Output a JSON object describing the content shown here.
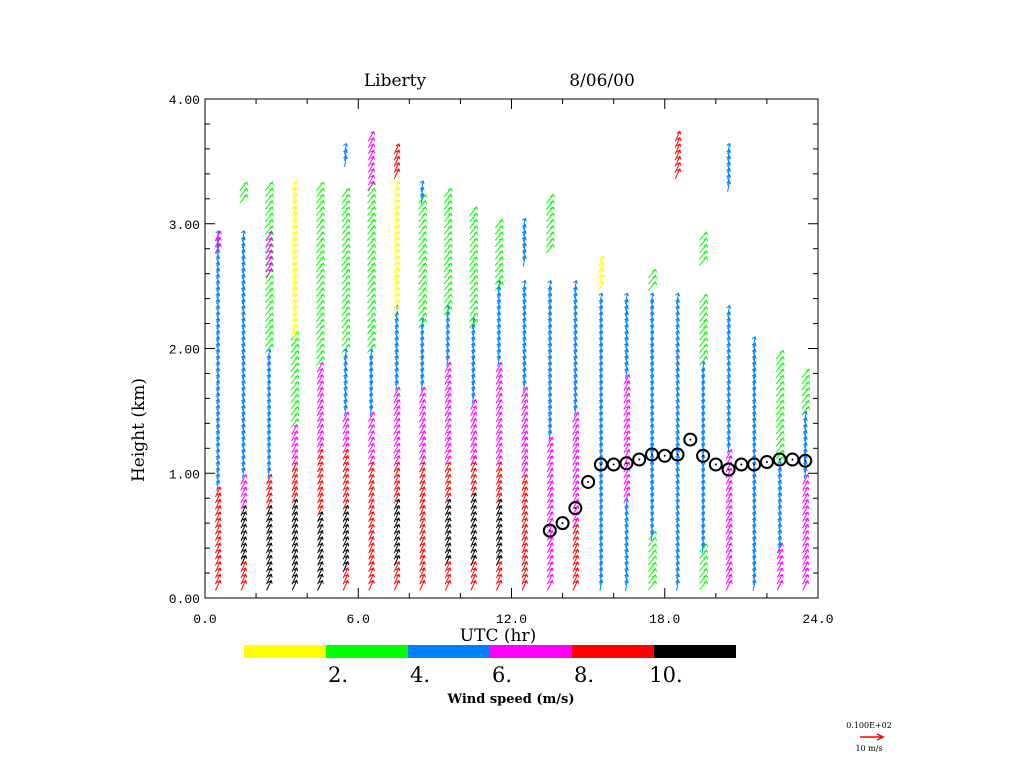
{
  "chart_data": {
    "type": "wind-profile-time-height",
    "title_station": "Liberty",
    "title_date": "8/06/00",
    "xlabel": "UTC (hr)",
    "ylabel": "Height (km)",
    "xlim": [
      0,
      24
    ],
    "ylim": [
      0,
      4
    ],
    "x_ticks": [
      "0.0",
      "6.0",
      "12.0",
      "18.0",
      "24.0"
    ],
    "y_ticks": [
      "0.00",
      "1.00",
      "2.00",
      "3.00",
      "4.00"
    ],
    "colorbar": {
      "label": "Wind speed (m/s)",
      "bins": [
        [
          0,
          2
        ],
        [
          2,
          4
        ],
        [
          4,
          6
        ],
        [
          6,
          8
        ],
        [
          8,
          10
        ],
        [
          10,
          12
        ]
      ],
      "colors": [
        "#ffff00",
        "#00ff00",
        "#0080ff",
        "#ff00ff",
        "#ff0000",
        "#000000"
      ],
      "tick_labels": [
        "2.",
        "4.",
        "6.",
        "8.",
        "10."
      ]
    },
    "reference_vector": {
      "scale_label": "0.100E+02",
      "label": "10 m/s",
      "color": "#ff0000"
    },
    "profiles": [
      {
        "t": 0.5,
        "bands": [
          [
            0.1,
            0.9,
            4
          ],
          [
            0.9,
            2.9,
            2
          ],
          [
            2.8,
            2.9,
            3
          ]
        ]
      },
      {
        "t": 1.5,
        "bands": [
          [
            0.1,
            0.3,
            4
          ],
          [
            0.3,
            0.75,
            5
          ],
          [
            0.75,
            1.0,
            3
          ],
          [
            1.0,
            2.9,
            2
          ],
          [
            3.2,
            3.3,
            1
          ]
        ]
      },
      {
        "t": 2.5,
        "bands": [
          [
            0.1,
            0.75,
            5
          ],
          [
            0.75,
            1.0,
            4
          ],
          [
            1.0,
            2.0,
            2
          ],
          [
            2.0,
            3.3,
            1
          ],
          [
            2.6,
            2.9,
            3
          ]
        ]
      },
      {
        "t": 3.5,
        "bands": [
          [
            0.1,
            0.8,
            5
          ],
          [
            0.8,
            1.1,
            4
          ],
          [
            1.1,
            1.4,
            3
          ],
          [
            1.4,
            2.1,
            1
          ],
          [
            2.1,
            3.3,
            0
          ]
        ]
      },
      {
        "t": 4.5,
        "bands": [
          [
            0.1,
            0.7,
            5
          ],
          [
            0.7,
            1.2,
            4
          ],
          [
            1.2,
            1.9,
            3
          ],
          [
            1.9,
            3.3,
            1
          ]
        ]
      },
      {
        "t": 5.5,
        "bands": [
          [
            0.1,
            0.25,
            4
          ],
          [
            0.25,
            0.75,
            5
          ],
          [
            0.75,
            1.2,
            4
          ],
          [
            1.2,
            1.5,
            3
          ],
          [
            1.5,
            2.0,
            2
          ],
          [
            2.0,
            3.25,
            1
          ],
          [
            3.5,
            3.6,
            2
          ]
        ]
      },
      {
        "t": 6.5,
        "bands": [
          [
            0.1,
            1.1,
            4
          ],
          [
            1.1,
            1.5,
            3
          ],
          [
            1.5,
            2.0,
            2
          ],
          [
            2.0,
            3.3,
            1
          ],
          [
            3.3,
            3.7,
            3
          ]
        ]
      },
      {
        "t": 7.5,
        "bands": [
          [
            0.1,
            0.3,
            4
          ],
          [
            0.3,
            0.8,
            5
          ],
          [
            0.8,
            1.1,
            4
          ],
          [
            1.1,
            1.7,
            3
          ],
          [
            1.7,
            2.3,
            2
          ],
          [
            2.3,
            3.3,
            0
          ],
          [
            3.4,
            3.6,
            4
          ]
        ]
      },
      {
        "t": 8.5,
        "bands": [
          [
            0.1,
            1.1,
            4
          ],
          [
            1.1,
            1.7,
            3
          ],
          [
            1.7,
            2.2,
            2
          ],
          [
            2.2,
            3.2,
            1
          ],
          [
            3.2,
            3.3,
            2
          ]
        ]
      },
      {
        "t": 9.5,
        "bands": [
          [
            0.1,
            0.3,
            4
          ],
          [
            0.3,
            0.8,
            5
          ],
          [
            0.8,
            1.1,
            4
          ],
          [
            1.1,
            1.9,
            3
          ],
          [
            1.9,
            2.3,
            2
          ],
          [
            2.3,
            3.25,
            1
          ]
        ]
      },
      {
        "t": 10.5,
        "bands": [
          [
            0.1,
            0.3,
            4
          ],
          [
            0.3,
            0.85,
            5
          ],
          [
            0.85,
            1.1,
            4
          ],
          [
            1.1,
            1.6,
            3
          ],
          [
            1.6,
            2.2,
            2
          ],
          [
            2.2,
            3.1,
            1
          ]
        ]
      },
      {
        "t": 11.5,
        "bands": [
          [
            0.1,
            0.3,
            4
          ],
          [
            0.3,
            0.8,
            5
          ],
          [
            0.8,
            1.1,
            4
          ],
          [
            1.1,
            1.9,
            3
          ],
          [
            1.9,
            2.5,
            2
          ],
          [
            2.5,
            3.0,
            1
          ]
        ]
      },
      {
        "t": 12.5,
        "bands": [
          [
            0.1,
            1.0,
            4
          ],
          [
            1.0,
            1.7,
            3
          ],
          [
            1.7,
            2.5,
            2
          ],
          [
            2.7,
            3.0,
            2
          ]
        ]
      },
      {
        "t": 13.5,
        "bands": [
          [
            0.1,
            1.3,
            3
          ],
          [
            1.3,
            2.5,
            2
          ],
          [
            2.8,
            3.2,
            1
          ]
        ]
      },
      {
        "t": 14.5,
        "bands": [
          [
            0.1,
            0.6,
            4
          ],
          [
            0.6,
            1.5,
            3
          ],
          [
            1.5,
            2.5,
            2
          ]
        ]
      },
      {
        "t": 15.5,
        "bands": [
          [
            0.1,
            2.4,
            2
          ],
          [
            2.5,
            2.7,
            0
          ]
        ]
      },
      {
        "t": 16.5,
        "bands": [
          [
            0.1,
            0.8,
            2
          ],
          [
            0.8,
            1.8,
            3
          ],
          [
            1.8,
            2.4,
            2
          ]
        ]
      },
      {
        "t": 17.5,
        "bands": [
          [
            0.1,
            0.5,
            1
          ],
          [
            0.5,
            2.4,
            2
          ],
          [
            2.5,
            2.6,
            1
          ]
        ]
      },
      {
        "t": 18.5,
        "bands": [
          [
            0.1,
            2.4,
            2
          ],
          [
            3.4,
            3.7,
            4
          ]
        ]
      },
      {
        "t": 19.5,
        "bands": [
          [
            0.1,
            0.4,
            1
          ],
          [
            0.4,
            1.9,
            2
          ],
          [
            1.9,
            2.4,
            1
          ],
          [
            2.7,
            2.9,
            1
          ]
        ]
      },
      {
        "t": 20.5,
        "bands": [
          [
            0.1,
            1.2,
            3
          ],
          [
            1.2,
            2.3,
            2
          ],
          [
            3.3,
            3.6,
            2
          ]
        ]
      },
      {
        "t": 21.5,
        "bands": [
          [
            0.1,
            2.1,
            2
          ]
        ]
      },
      {
        "t": 22.5,
        "bands": [
          [
            0.1,
            0.4,
            3
          ],
          [
            0.4,
            1.1,
            2
          ],
          [
            1.1,
            2.0,
            1
          ]
        ]
      },
      {
        "t": 23.5,
        "bands": [
          [
            0.1,
            1.0,
            3
          ],
          [
            1.0,
            1.5,
            2
          ],
          [
            1.5,
            1.85,
            1
          ]
        ]
      }
    ],
    "boundary_layer_height": {
      "t": [
        13.5,
        14.0,
        14.5,
        15.0,
        15.5,
        16.0,
        16.5,
        17.0,
        17.5,
        18.0,
        18.5,
        19.0,
        19.5,
        20.0,
        20.5,
        21.0,
        21.5,
        22.0,
        22.5,
        23.0,
        23.5
      ],
      "h": [
        0.54,
        0.6,
        0.72,
        0.93,
        1.07,
        1.07,
        1.08,
        1.11,
        1.15,
        1.14,
        1.15,
        1.27,
        1.14,
        1.07,
        1.03,
        1.07,
        1.07,
        1.09,
        1.11,
        1.11,
        1.1
      ]
    }
  }
}
